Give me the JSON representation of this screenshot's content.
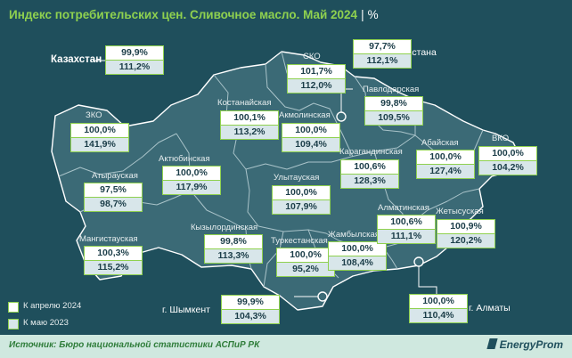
{
  "title": {
    "main": "Индекс потребительских цен. Сливочное масло. Май 2024",
    "sep": "|",
    "unit": "%"
  },
  "kazakhstan": {
    "label": "Казахстан",
    "v1": "99,9%",
    "v2": "111,2%"
  },
  "regions": [
    {
      "id": "zko",
      "name": "ЗКО",
      "v1": "100,0%",
      "v2": "141,9%"
    },
    {
      "id": "atyrau",
      "name": "Атырауская",
      "v1": "97,5%",
      "v2": "98,7%"
    },
    {
      "id": "mangistau",
      "name": "Мангистауская",
      "v1": "100,3%",
      "v2": "115,2%"
    },
    {
      "id": "aktobe",
      "name": "Актюбинская",
      "v1": "100,0%",
      "v2": "117,9%"
    },
    {
      "id": "kostanay",
      "name": "Костанайская",
      "v1": "100,1%",
      "v2": "113,2%"
    },
    {
      "id": "sko",
      "name": "СКО",
      "v1": "101,7%",
      "v2": "112,0%"
    },
    {
      "id": "astana",
      "name": "г. Астана",
      "v1": "97,7%",
      "v2": "112,1%"
    },
    {
      "id": "pavlodar",
      "name": "Павлодарская",
      "v1": "99,8%",
      "v2": "109,5%"
    },
    {
      "id": "akmola",
      "name": "Акмолинская",
      "v1": "100,0%",
      "v2": "109,4%"
    },
    {
      "id": "karaganda",
      "name": "Карагандинская",
      "v1": "100,6%",
      "v2": "128,3%"
    },
    {
      "id": "abay",
      "name": "Абайская",
      "v1": "100,0%",
      "v2": "127,4%"
    },
    {
      "id": "vko",
      "name": "ВКО",
      "v1": "100,0%",
      "v2": "104,2%"
    },
    {
      "id": "ulytau",
      "name": "Улытауская",
      "v1": "100,0%",
      "v2": "107,9%"
    },
    {
      "id": "kyzylorda",
      "name": "Кызылординская",
      "v1": "99,8%",
      "v2": "113,3%"
    },
    {
      "id": "turkestan",
      "name": "Туркестанская",
      "v1": "100,0%",
      "v2": "95,2%"
    },
    {
      "id": "zhambyl",
      "name": "Жамбылская",
      "v1": "100,0%",
      "v2": "108,4%"
    },
    {
      "id": "almaty_reg",
      "name": "Алматинская",
      "v1": "100,6%",
      "v2": "111,1%"
    },
    {
      "id": "zhetysu",
      "name": "Жетысуская",
      "v1": "100,9%",
      "v2": "120,2%"
    },
    {
      "id": "shymkent",
      "name": "г. Шымкент",
      "v1": "99,9%",
      "v2": "104,3%"
    },
    {
      "id": "almaty",
      "name": "г. Алматы",
      "v1": "100,0%",
      "v2": "110,4%"
    }
  ],
  "legend": [
    {
      "label": "К апрелю 2024",
      "color": "#ffffff"
    },
    {
      "label": "К маю 2023",
      "color": "#d8e6ea"
    }
  ],
  "colors": {
    "accent": "#8fd14f",
    "map_fill": "#3b6a76",
    "background": "#1f4f5c"
  },
  "footer": {
    "source": "Источник: Бюро национальной статистики АСПиР РК",
    "brand": "EnergyProm"
  }
}
